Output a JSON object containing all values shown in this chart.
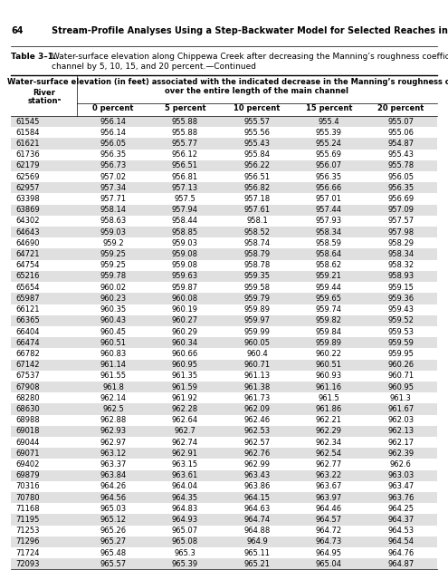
{
  "page_num": "64",
  "page_title": "Stream-Profile Analyses Using a Step-Backwater Model for Selected Reaches in the Chippewa Creek Basin in Ohio",
  "table_label": "Table 3–1.",
  "table_caption_line1": "Water-surface elevation along Chippewa Creek after decreasing the Manning’s roughness coefficient (n) for the main",
  "table_caption_line2": "channel by 5, 10, 15, and 20 percent.—Continued",
  "col_header_line1": "Water-surface elevation (in feet) associated with the indicated decrease in the Manning’s roughness coefficient (n)",
  "col_header_line2": "over the entire length of the main channel",
  "col_headers": [
    "0 percent",
    "5 percent",
    "10 percent",
    "15 percent",
    "20 percent"
  ],
  "rows": [
    [
      "61545",
      "956.14",
      "955.88",
      "955.57",
      "955.4",
      "955.07"
    ],
    [
      "61584",
      "956.14",
      "955.88",
      "955.56",
      "955.39",
      "955.06"
    ],
    [
      "61621",
      "956.05",
      "955.77",
      "955.43",
      "955.24",
      "954.87"
    ],
    [
      "61736",
      "956.35",
      "956.12",
      "955.84",
      "955.69",
      "955.43"
    ],
    [
      "62179",
      "956.73",
      "956.51",
      "956.22",
      "956.07",
      "955.78"
    ],
    [
      "62569",
      "957.02",
      "956.81",
      "956.51",
      "956.35",
      "956.05"
    ],
    [
      "62957",
      "957.34",
      "957.13",
      "956.82",
      "956.66",
      "956.35"
    ],
    [
      "63398",
      "957.71",
      "957.5",
      "957.18",
      "957.01",
      "956.69"
    ],
    [
      "63869",
      "958.14",
      "957.94",
      "957.61",
      "957.44",
      "957.09"
    ],
    [
      "64302",
      "958.63",
      "958.44",
      "958.1",
      "957.93",
      "957.57"
    ],
    [
      "64643",
      "959.03",
      "958.85",
      "958.52",
      "958.34",
      "957.98"
    ],
    [
      "64690",
      "959.2",
      "959.03",
      "958.74",
      "958.59",
      "958.29"
    ],
    [
      "64721",
      "959.25",
      "959.08",
      "958.79",
      "958.64",
      "958.34"
    ],
    [
      "64754",
      "959.25",
      "959.08",
      "958.78",
      "958.62",
      "958.32"
    ],
    [
      "65216",
      "959.78",
      "959.63",
      "959.35",
      "959.21",
      "958.93"
    ],
    [
      "65654",
      "960.02",
      "959.87",
      "959.58",
      "959.44",
      "959.15"
    ],
    [
      "65987",
      "960.23",
      "960.08",
      "959.79",
      "959.65",
      "959.36"
    ],
    [
      "66121",
      "960.35",
      "960.19",
      "959.89",
      "959.74",
      "959.43"
    ],
    [
      "66365",
      "960.43",
      "960.27",
      "959.97",
      "959.82",
      "959.52"
    ],
    [
      "66404",
      "960.45",
      "960.29",
      "959.99",
      "959.84",
      "959.53"
    ],
    [
      "66474",
      "960.51",
      "960.34",
      "960.05",
      "959.89",
      "959.59"
    ],
    [
      "66782",
      "960.83",
      "960.66",
      "960.4",
      "960.22",
      "959.95"
    ],
    [
      "67142",
      "961.14",
      "960.95",
      "960.71",
      "960.51",
      "960.26"
    ],
    [
      "67537",
      "961.55",
      "961.35",
      "961.13",
      "960.93",
      "960.71"
    ],
    [
      "67908",
      "961.8",
      "961.59",
      "961.38",
      "961.16",
      "960.95"
    ],
    [
      "68280",
      "962.14",
      "961.92",
      "961.73",
      "961.5",
      "961.3"
    ],
    [
      "68630",
      "962.5",
      "962.28",
      "962.09",
      "961.86",
      "961.67"
    ],
    [
      "68988",
      "962.88",
      "962.64",
      "962.46",
      "962.21",
      "962.03"
    ],
    [
      "69018",
      "962.93",
      "962.7",
      "962.53",
      "962.29",
      "962.13"
    ],
    [
      "69044",
      "962.97",
      "962.74",
      "962.57",
      "962.34",
      "962.17"
    ],
    [
      "69071",
      "963.12",
      "962.91",
      "962.76",
      "962.54",
      "962.39"
    ],
    [
      "69402",
      "963.37",
      "963.15",
      "962.99",
      "962.77",
      "962.6"
    ],
    [
      "69879",
      "963.84",
      "963.61",
      "963.43",
      "963.22",
      "963.03"
    ],
    [
      "70316",
      "964.26",
      "964.04",
      "963.86",
      "963.67",
      "963.47"
    ],
    [
      "70780",
      "964.56",
      "964.35",
      "964.15",
      "963.97",
      "963.76"
    ],
    [
      "71168",
      "965.03",
      "964.83",
      "964.63",
      "964.46",
      "964.25"
    ],
    [
      "71195",
      "965.12",
      "964.93",
      "964.74",
      "964.57",
      "964.37"
    ],
    [
      "71253",
      "965.26",
      "965.07",
      "964.88",
      "964.72",
      "964.53"
    ],
    [
      "71296",
      "965.27",
      "965.08",
      "964.9",
      "964.73",
      "964.54"
    ],
    [
      "71724",
      "965.48",
      "965.3",
      "965.11",
      "964.95",
      "964.76"
    ],
    [
      "72093",
      "965.57",
      "965.39",
      "965.21",
      "965.04",
      "964.87"
    ]
  ],
  "shaded_color": "#e0e0e0",
  "white_color": "#ffffff",
  "fs_page": 7.0,
  "fs_caption_label": 6.5,
  "fs_caption": 6.5,
  "fs_col_header": 6.0,
  "fs_subheader": 6.0,
  "fs_data": 6.0
}
